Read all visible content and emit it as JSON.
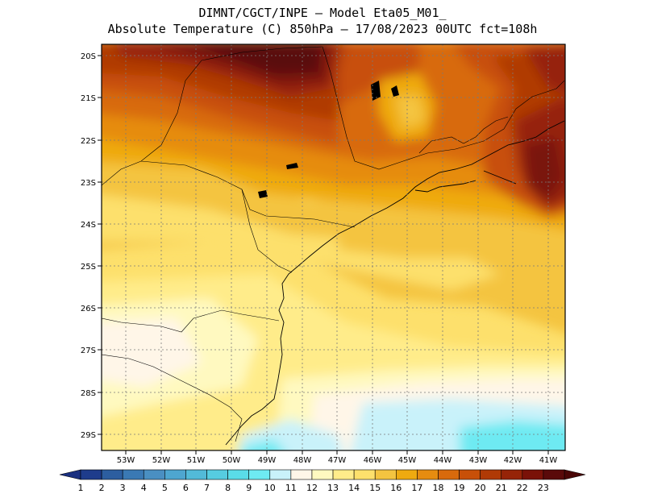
{
  "header": {
    "line1": "DIMNT/CGCT/INPE –  Model Eta05_M01_",
    "line2": "Absolute Temperature (C) 850hPa –  17/08/2023 00UTC fct=108h"
  },
  "map": {
    "lat_labels": [
      "20S",
      "21S",
      "22S",
      "23S",
      "24S",
      "25S",
      "26S",
      "27S",
      "28S",
      "29S"
    ],
    "lon_labels": [
      "53W",
      "52W",
      "51W",
      "50W",
      "49W",
      "48W",
      "47W",
      "46W",
      "45W",
      "44W",
      "43W",
      "42W",
      "41W"
    ]
  },
  "colorbar": {
    "labels": [
      "1",
      "2",
      "3",
      "4",
      "5",
      "6",
      "7",
      "8",
      "9",
      "10",
      "11",
      "12",
      "13",
      "14",
      "15",
      "16",
      "17",
      "18",
      "19",
      "20",
      "21",
      "22",
      "23"
    ],
    "colors": [
      "#1e3c8c",
      "#2c5ea0",
      "#3a79b4",
      "#4a8fc2",
      "#4ea6d0",
      "#52bad8",
      "#56cce0",
      "#5adce8",
      "#6eeaf2",
      "#c9f2fa",
      "#fff6e8",
      "#fff9c0",
      "#ffec8a",
      "#fde06c",
      "#f4c440",
      "#efaa10",
      "#e68c10",
      "#d86a0c",
      "#c85008",
      "#b03a06",
      "#962408",
      "#7a1208",
      "#5a0a0a"
    ],
    "cap_left": "#1a3080",
    "cap_right": "#4a0606"
  },
  "legend_note": ""
}
